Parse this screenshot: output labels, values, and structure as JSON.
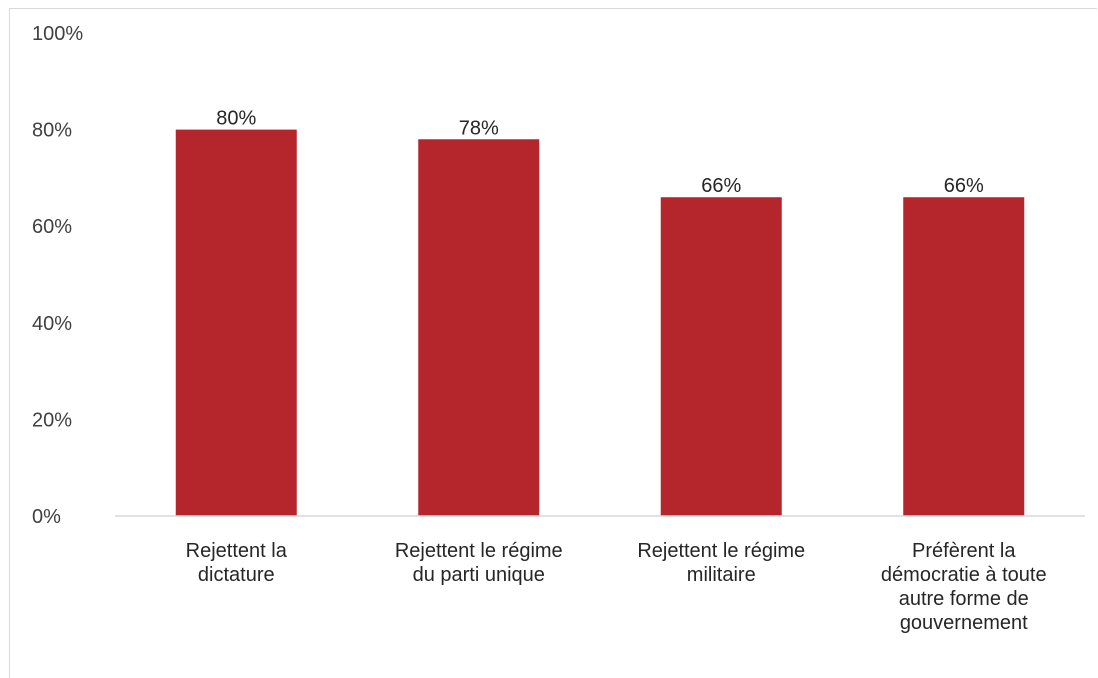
{
  "chart_data": {
    "type": "bar",
    "title": "",
    "xlabel": "",
    "ylabel": "",
    "categories": [
      "Rejettent la dictature",
      "Rejettent le régime du parti unique",
      "Rejettent le régime militaire",
      "Préfèrent la démocratie à toute autre forme de gouvernement"
    ],
    "category_lines": [
      [
        "Rejettent la",
        "dictature"
      ],
      [
        "Rejettent le régime",
        "du parti unique"
      ],
      [
        "Rejettent le régime",
        "militaire"
      ],
      [
        "Préfèrent la",
        "démocratie à toute",
        "autre forme de",
        "gouvernement"
      ]
    ],
    "values": [
      80,
      78,
      66,
      66
    ],
    "data_labels": [
      "80%",
      "78%",
      "66%",
      "66%"
    ],
    "ylim": [
      0,
      100
    ],
    "yticks": [
      0,
      20,
      40,
      60,
      80,
      100
    ],
    "ytick_labels": [
      "0%",
      "20%",
      "40%",
      "60%",
      "80%",
      "100%"
    ],
    "bar_color": "#b5262c",
    "grid": false,
    "legend": "none"
  }
}
